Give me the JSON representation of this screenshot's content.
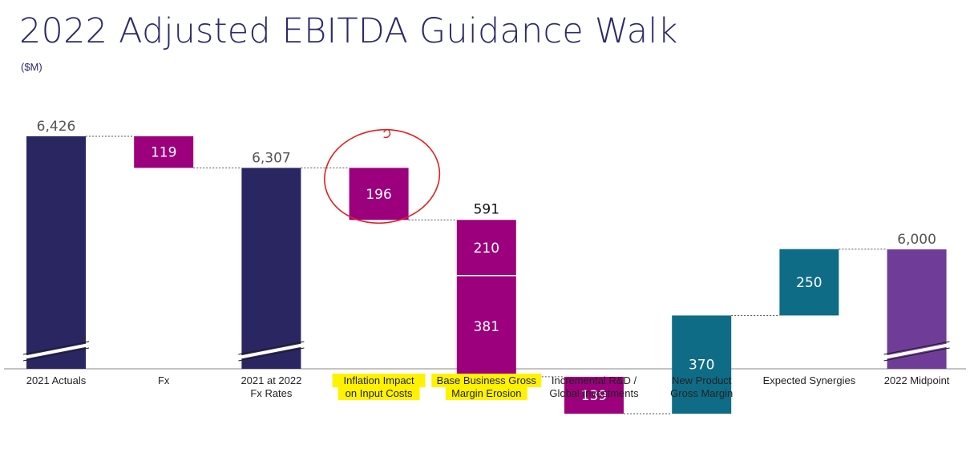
{
  "page": {
    "title": "2022 Adjusted EBITDA Guidance Walk",
    "subtitle": "($M)"
  },
  "colors": {
    "total": "#2a2662",
    "decrease": "#9c007d",
    "increase": "#0f6c87",
    "final": "#6f3d98",
    "highlight": "#fff200",
    "annotation": "#e02020"
  },
  "chart_data": {
    "type": "bar",
    "subtype": "waterfall",
    "title": "2022 Adjusted EBITDA Guidance Walk",
    "unit": "($M)",
    "axis_break": true,
    "ylim": [
      5550,
      6426
    ],
    "categories": [
      [
        "2021 Actuals"
      ],
      [
        "Fx"
      ],
      [
        "2021 at 2022",
        "Fx Rates"
      ],
      [
        "Inflation Impact",
        "on Input Costs"
      ],
      [
        "Base Business Gross",
        "Margin Erosion"
      ],
      [
        "Incremental R&D /",
        "Global Investments"
      ],
      [
        "New Product",
        "Gross Margin"
      ],
      [
        "Expected Synergies"
      ],
      [
        "2022 Midpoint"
      ]
    ],
    "steps": [
      {
        "kind": "total",
        "value": 6426,
        "label": "6,426"
      },
      {
        "kind": "decrease",
        "value": 119,
        "label": "119"
      },
      {
        "kind": "total",
        "value": 6307,
        "label": "6,307"
      },
      {
        "kind": "decrease",
        "value": 196,
        "label": "196"
      },
      {
        "kind": "decrease",
        "value": 591,
        "label": "591",
        "segments": [
          {
            "value": 210,
            "label": "210"
          },
          {
            "value": 381,
            "label": "381"
          }
        ]
      },
      {
        "kind": "decrease",
        "value": 139,
        "label": "139"
      },
      {
        "kind": "increase",
        "value": 370,
        "label": "370"
      },
      {
        "kind": "increase",
        "value": 250,
        "label": "250"
      },
      {
        "kind": "final",
        "value": 6000,
        "label": "6,000"
      }
    ],
    "highlighted_categories": [
      3,
      4
    ],
    "circled_category": 3
  }
}
